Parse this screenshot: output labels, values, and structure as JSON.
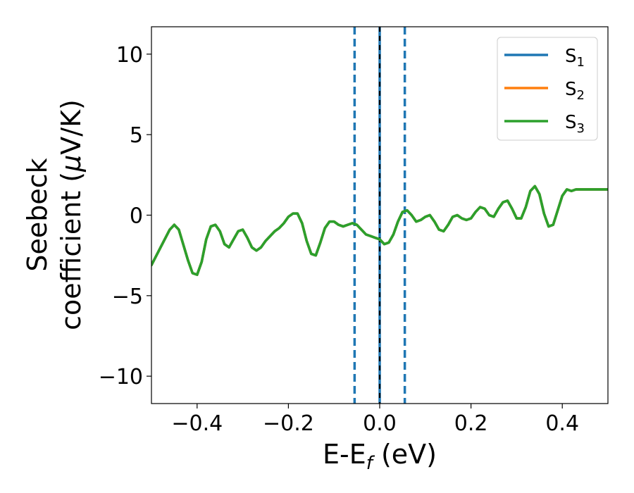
{
  "chart_data": {
    "type": "line",
    "title": "",
    "xlabel": {
      "main": "E-E",
      "sub": "f",
      "unit": " (eV)"
    },
    "ylabel": {
      "line1": "Seebeck",
      "line2": "coefficient  (",
      "mu": "μ",
      "unit": "V/K)"
    },
    "xlim": [
      -0.5,
      0.5
    ],
    "ylim": [
      -11.7,
      11.7
    ],
    "xticks": [
      -0.4,
      -0.2,
      0.0,
      0.2,
      0.4
    ],
    "xtick_labels": [
      "−0.4",
      "−0.2",
      "0.0",
      "0.2",
      "0.4"
    ],
    "yticks": [
      -10,
      -5,
      0,
      5,
      10
    ],
    "ytick_labels": [
      "−10",
      "−5",
      "0",
      "5",
      "10"
    ],
    "grid": false,
    "legend_position": "top-right",
    "colors": {
      "s1": "#1f77b4",
      "s2": "#ff7f0e",
      "s3": "#2ca02c",
      "fermi_line": "#000000"
    },
    "vertical_lines": [
      {
        "x": -0.055,
        "style": "dashed",
        "color": "#1f77b4"
      },
      {
        "x": 0.0,
        "style": "solid",
        "color": "#1f77b4"
      },
      {
        "x": 0.0,
        "style": "dashed",
        "color": "#000000"
      },
      {
        "x": 0.055,
        "style": "dashed",
        "color": "#1f77b4"
      }
    ],
    "x": [
      -0.5,
      -0.48,
      -0.46,
      -0.45,
      -0.44,
      -0.42,
      -0.41,
      -0.4,
      -0.39,
      -0.38,
      -0.37,
      -0.36,
      -0.35,
      -0.34,
      -0.33,
      -0.32,
      -0.31,
      -0.3,
      -0.29,
      -0.28,
      -0.27,
      -0.26,
      -0.25,
      -0.24,
      -0.23,
      -0.22,
      -0.21,
      -0.2,
      -0.19,
      -0.18,
      -0.17,
      -0.16,
      -0.15,
      -0.14,
      -0.13,
      -0.12,
      -0.11,
      -0.1,
      -0.09,
      -0.08,
      -0.07,
      -0.06,
      -0.05,
      -0.04,
      -0.03,
      -0.02,
      -0.01,
      0.0,
      0.01,
      0.02,
      0.03,
      0.04,
      0.05,
      0.06,
      0.07,
      0.08,
      0.09,
      0.1,
      0.11,
      0.12,
      0.13,
      0.14,
      0.15,
      0.16,
      0.17,
      0.18,
      0.19,
      0.2,
      0.21,
      0.22,
      0.23,
      0.24,
      0.25,
      0.26,
      0.27,
      0.28,
      0.29,
      0.3,
      0.31,
      0.32,
      0.33,
      0.34,
      0.35,
      0.36,
      0.37,
      0.38,
      0.39,
      0.4,
      0.41,
      0.42,
      0.43,
      0.44,
      0.45,
      0.46,
      0.47,
      0.48,
      0.49,
      0.5
    ],
    "series": [
      {
        "name": "S1",
        "label_main": "S",
        "label_sub": "1",
        "color": "#1f77b4",
        "values": [
          -3.1,
          -2.0,
          -0.9,
          -0.6,
          -0.9,
          -2.8,
          -3.6,
          -3.7,
          -2.9,
          -1.5,
          -0.7,
          -0.6,
          -1.0,
          -1.8,
          -2.0,
          -1.5,
          -1.0,
          -0.9,
          -1.4,
          -2.0,
          -2.2,
          -2.0,
          -1.6,
          -1.3,
          -1.0,
          -0.8,
          -0.5,
          -0.1,
          0.1,
          0.1,
          -0.5,
          -1.6,
          -2.4,
          -2.5,
          -1.7,
          -0.8,
          -0.4,
          -0.4,
          -0.6,
          -0.7,
          -0.6,
          -0.5,
          -0.6,
          -0.9,
          -1.2,
          -1.3,
          -1.4,
          -1.5,
          -1.8,
          -1.7,
          -1.2,
          -0.4,
          0.2,
          0.3,
          0.0,
          -0.4,
          -0.3,
          -0.1,
          0.0,
          -0.4,
          -0.9,
          -1.0,
          -0.6,
          -0.1,
          0.0,
          -0.2,
          -0.3,
          -0.2,
          0.2,
          0.5,
          0.4,
          0.0,
          -0.1,
          0.4,
          0.8,
          0.9,
          0.4,
          -0.2,
          -0.2,
          0.5,
          1.5,
          1.8,
          1.3,
          0.1,
          -0.7,
          -0.6,
          0.3,
          1.2,
          1.6,
          1.5,
          1.6,
          1.6,
          1.6,
          1.6,
          1.6,
          1.6,
          1.6,
          1.6
        ]
      },
      {
        "name": "S2",
        "label_main": "S",
        "label_sub": "2",
        "color": "#ff7f0e",
        "values": [
          -3.1,
          -2.0,
          -0.9,
          -0.6,
          -0.9,
          -2.8,
          -3.6,
          -3.7,
          -2.9,
          -1.5,
          -0.7,
          -0.6,
          -1.0,
          -1.8,
          -2.0,
          -1.5,
          -1.0,
          -0.9,
          -1.4,
          -2.0,
          -2.2,
          -2.0,
          -1.6,
          -1.3,
          -1.0,
          -0.8,
          -0.5,
          -0.1,
          0.1,
          0.1,
          -0.5,
          -1.6,
          -2.4,
          -2.5,
          -1.7,
          -0.8,
          -0.4,
          -0.4,
          -0.6,
          -0.7,
          -0.6,
          -0.5,
          -0.6,
          -0.9,
          -1.2,
          -1.3,
          -1.4,
          -1.5,
          -1.8,
          -1.7,
          -1.2,
          -0.4,
          0.2,
          0.3,
          0.0,
          -0.4,
          -0.3,
          -0.1,
          0.0,
          -0.4,
          -0.9,
          -1.0,
          -0.6,
          -0.1,
          0.0,
          -0.2,
          -0.3,
          -0.2,
          0.2,
          0.5,
          0.4,
          0.0,
          -0.1,
          0.4,
          0.8,
          0.9,
          0.4,
          -0.2,
          -0.2,
          0.5,
          1.5,
          1.8,
          1.3,
          0.1,
          -0.7,
          -0.6,
          0.3,
          1.2,
          1.6,
          1.5,
          1.6,
          1.6,
          1.6,
          1.6,
          1.6,
          1.6,
          1.6,
          1.6
        ]
      },
      {
        "name": "S3",
        "label_main": "S",
        "label_sub": "3",
        "color": "#2ca02c",
        "values": [
          -3.1,
          -2.0,
          -0.9,
          -0.6,
          -0.9,
          -2.8,
          -3.6,
          -3.7,
          -2.9,
          -1.5,
          -0.7,
          -0.6,
          -1.0,
          -1.8,
          -2.0,
          -1.5,
          -1.0,
          -0.9,
          -1.4,
          -2.0,
          -2.2,
          -2.0,
          -1.6,
          -1.3,
          -1.0,
          -0.8,
          -0.5,
          -0.1,
          0.1,
          0.1,
          -0.5,
          -1.6,
          -2.4,
          -2.5,
          -1.7,
          -0.8,
          -0.4,
          -0.4,
          -0.6,
          -0.7,
          -0.6,
          -0.5,
          -0.6,
          -0.9,
          -1.2,
          -1.3,
          -1.4,
          -1.5,
          -1.8,
          -1.7,
          -1.2,
          -0.4,
          0.2,
          0.3,
          0.0,
          -0.4,
          -0.3,
          -0.1,
          0.0,
          -0.4,
          -0.9,
          -1.0,
          -0.6,
          -0.1,
          0.0,
          -0.2,
          -0.3,
          -0.2,
          0.2,
          0.5,
          0.4,
          0.0,
          -0.1,
          0.4,
          0.8,
          0.9,
          0.4,
          -0.2,
          -0.2,
          0.5,
          1.5,
          1.8,
          1.3,
          0.1,
          -0.7,
          -0.6,
          0.3,
          1.2,
          1.6,
          1.5,
          1.6,
          1.6,
          1.6,
          1.6,
          1.6,
          1.6,
          1.6,
          1.6
        ]
      }
    ]
  }
}
